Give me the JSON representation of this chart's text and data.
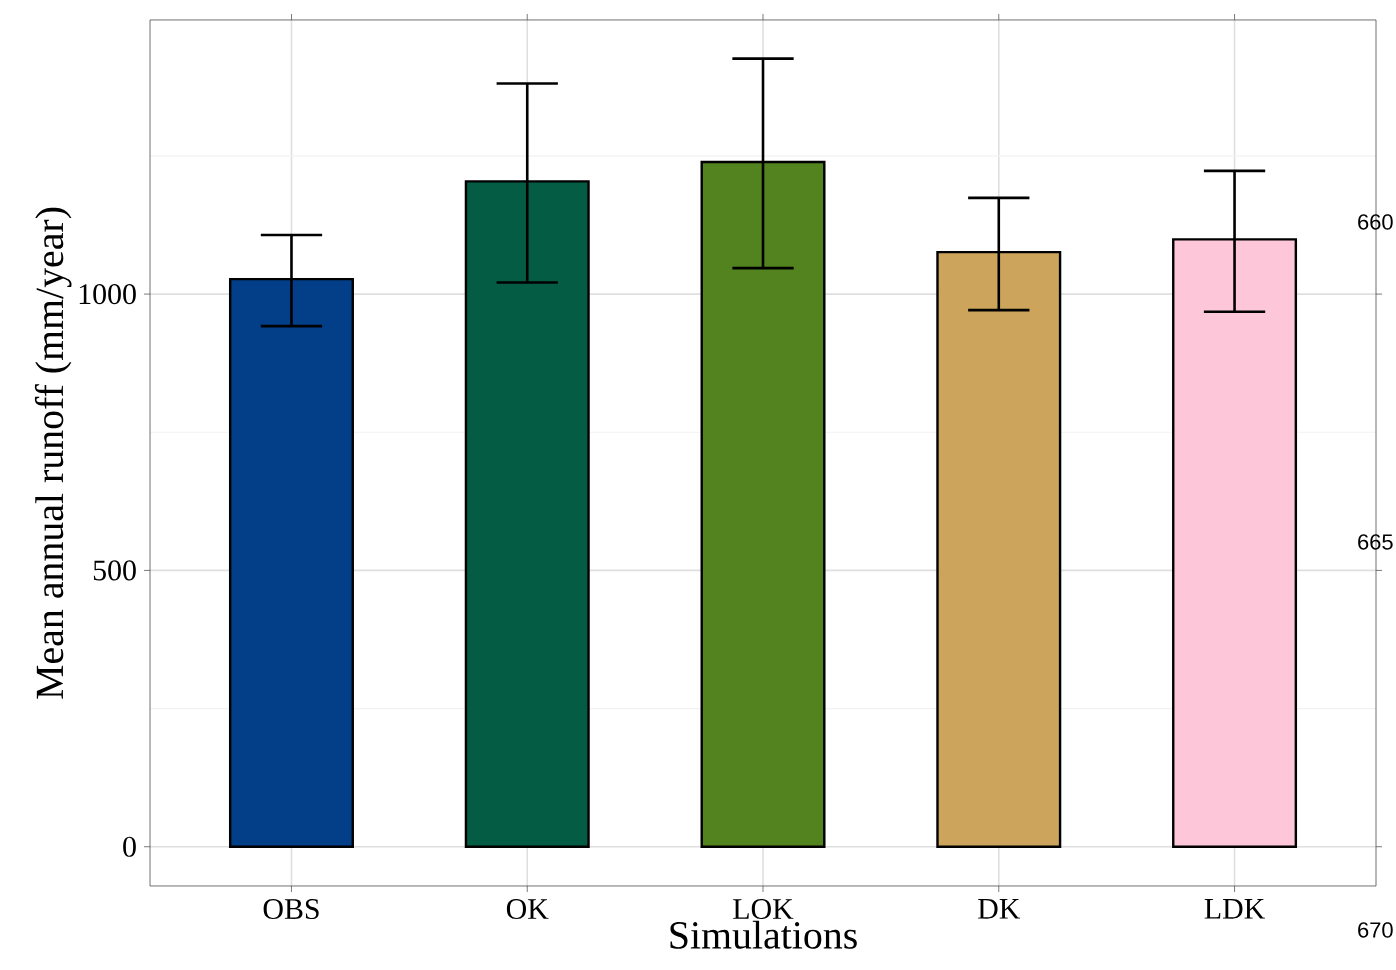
{
  "chart_data": {
    "type": "bar",
    "xlabel": "Simulations",
    "ylabel": "Mean annual runoff (mm/year)",
    "categories": [
      "OBS",
      "OK",
      "LOK",
      "DK",
      "LDK"
    ],
    "values": [
      1027,
      1204,
      1239,
      1076,
      1099
    ],
    "colors": [
      "#023f88",
      "#035c43",
      "#52831e",
      "#cda45c",
      "#fdc6d9"
    ],
    "errors": [
      [
        942,
        1107
      ],
      [
        1021,
        1381
      ],
      [
        1047,
        1426
      ],
      [
        971,
        1174
      ],
      [
        968,
        1223
      ]
    ],
    "ylim": [
      -71,
      1496
    ],
    "yticks": [
      0,
      500,
      1000
    ],
    "grid": true,
    "annotations": [
      "660",
      "665",
      "670"
    ]
  }
}
